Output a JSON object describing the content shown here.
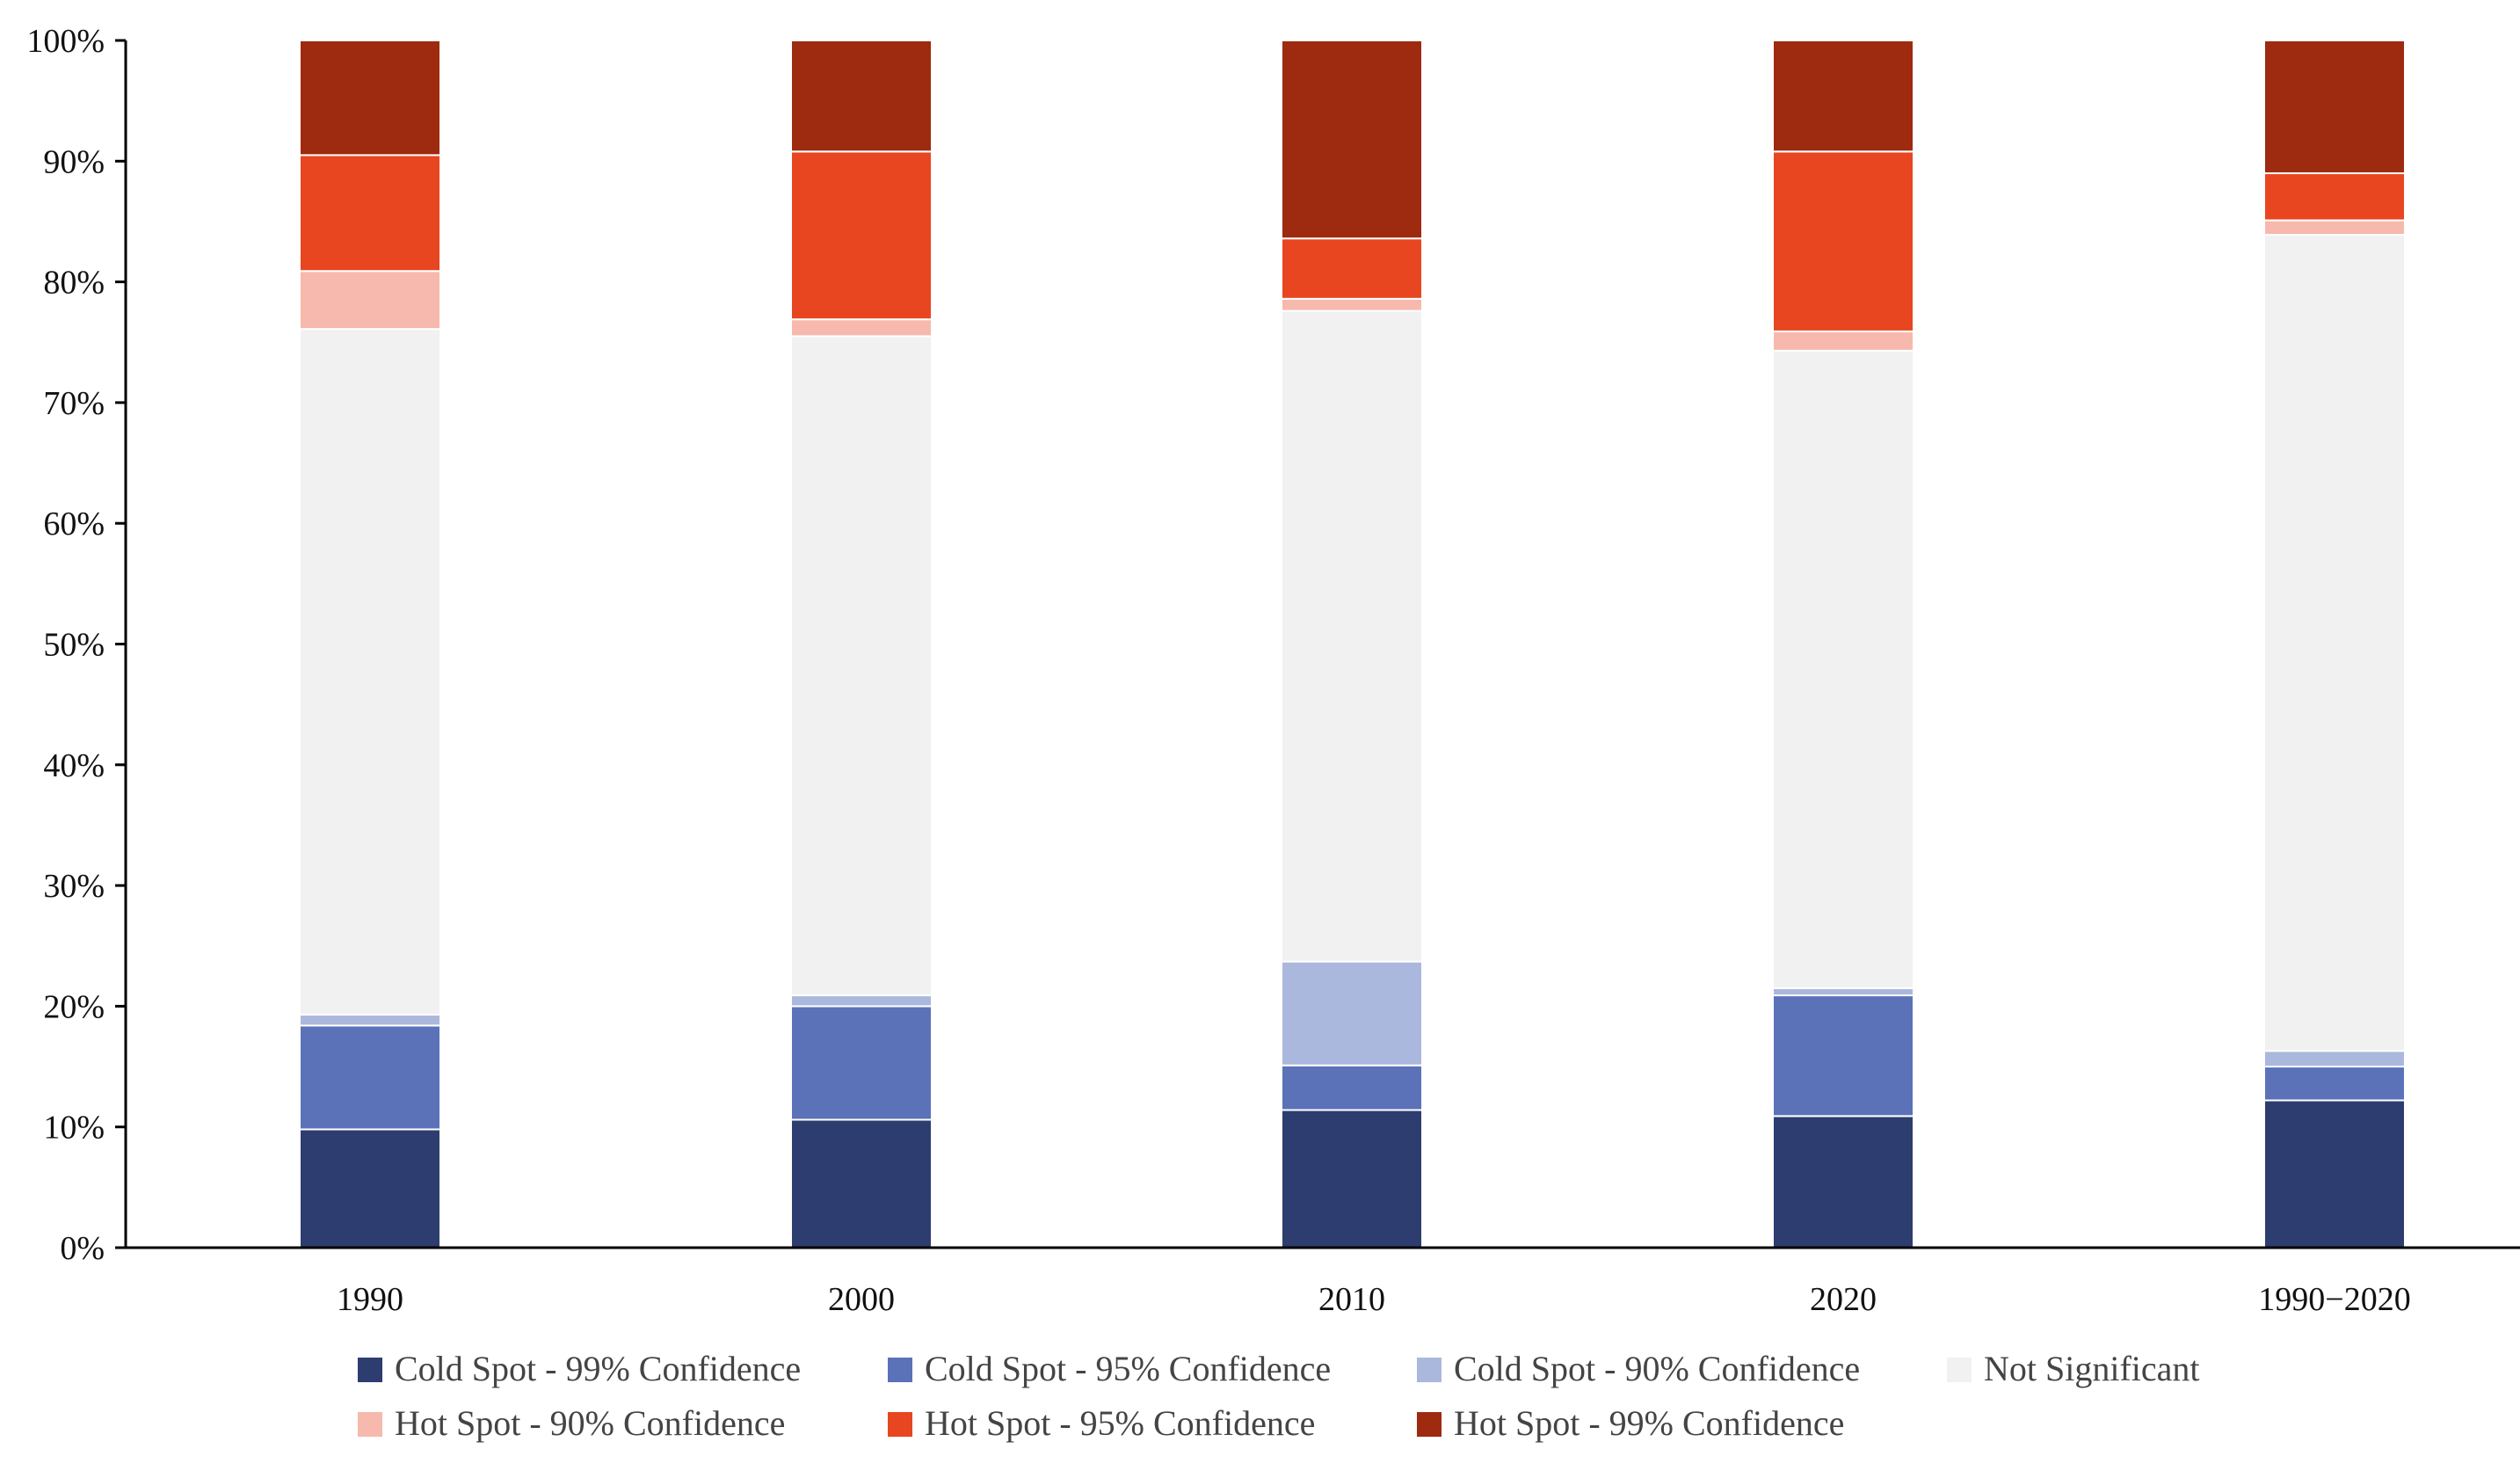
{
  "chart_data": {
    "type": "bar",
    "stacked": true,
    "normalized_percent": true,
    "title": "",
    "xlabel": "",
    "ylabel": "",
    "ylim": [
      0,
      100
    ],
    "y_ticks": [
      "0%",
      "10%",
      "20%",
      "30%",
      "40%",
      "50%",
      "60%",
      "70%",
      "80%",
      "90%",
      "100%"
    ],
    "categories": [
      "1990",
      "2000",
      "2010",
      "2020",
      "1990−2020"
    ],
    "legend_position": "bottom",
    "series": [
      {
        "name": "Cold Spot - 99% Confidence",
        "color": "#2e3d6f",
        "values": [
          9.8,
          10.6,
          11.4,
          10.9,
          12.2
        ]
      },
      {
        "name": "Cold Spot - 95% Confidence",
        "color": "#5b72b9",
        "values": [
          8.6,
          9.4,
          3.7,
          10.0,
          2.8
        ]
      },
      {
        "name": "Cold Spot - 90% Confidence",
        "color": "#abb8de",
        "values": [
          0.9,
          0.9,
          8.6,
          0.6,
          1.3
        ]
      },
      {
        "name": "Not Significant",
        "color": "#f1f1f1",
        "values": [
          56.8,
          54.6,
          53.9,
          52.8,
          67.6
        ]
      },
      {
        "name": "Hot Spot - 90% Confidence",
        "color": "#f7b9ad",
        "values": [
          4.8,
          1.4,
          1.0,
          1.6,
          1.2
        ]
      },
      {
        "name": "Hot Spot - 95% Confidence",
        "color": "#e84620",
        "values": [
          9.6,
          13.9,
          5.0,
          14.9,
          3.9
        ]
      },
      {
        "name": "Hot Spot - 99% Confidence",
        "color": "#9e2a10",
        "values": [
          9.5,
          9.2,
          16.4,
          9.2,
          11.0
        ]
      }
    ]
  }
}
